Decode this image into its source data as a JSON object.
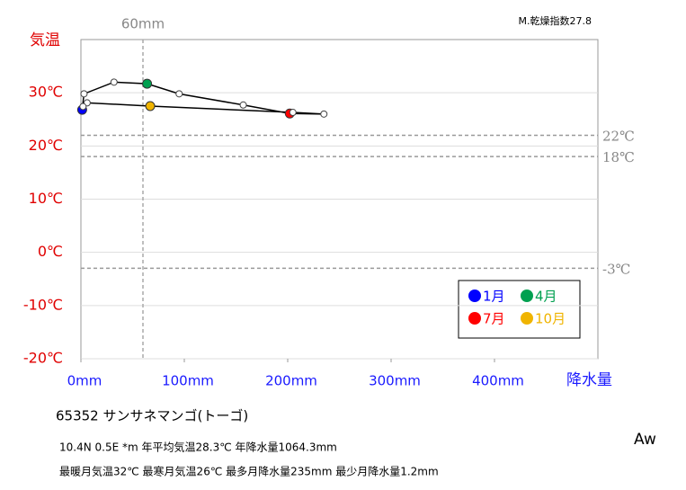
{
  "chart_data": {
    "type": "climograph",
    "station": "65352 サンサネマンゴ(トーゴ)",
    "index_label": "M.乾燥指数27.8",
    "y_label": "気温",
    "x_label": "降水量",
    "climate_class": "Aw",
    "info_lines": [
      "10.4N 0.5E *m 年平均気温28.3℃ 年降水量1064.3mm",
      "最暖月気温32℃ 最寒月気温26℃ 最多月降水量235mm 最少月降水量1.2mm"
    ],
    "xlim": [
      0,
      500
    ],
    "ylim": [
      -20,
      40
    ],
    "xticks": [
      {
        "value": 0,
        "label": "0mm"
      },
      {
        "value": 100,
        "label": "100mm"
      },
      {
        "value": 200,
        "label": "200mm"
      },
      {
        "value": 300,
        "label": "300mm"
      },
      {
        "value": 400,
        "label": "400mm"
      }
    ],
    "yticks": [
      {
        "value": -20,
        "label": "-20℃"
      },
      {
        "value": -10,
        "label": "-10℃"
      },
      {
        "value": 0,
        "label": "0℃"
      },
      {
        "value": 10,
        "label": "10℃"
      },
      {
        "value": 20,
        "label": "20℃"
      },
      {
        "value": 30,
        "label": "30℃"
      }
    ],
    "ref_lines": [
      {
        "value": 22,
        "label": "22℃"
      },
      {
        "value": 18,
        "label": "18℃"
      },
      {
        "value": -3,
        "label": "-3℃"
      }
    ],
    "ref_vline": {
      "value": 60,
      "label": "60mm"
    },
    "x": [
      1.2,
      3,
      32,
      64,
      95,
      157,
      202,
      235,
      205,
      67,
      6,
      2
    ],
    "values": [
      26.8,
      29.8,
      32,
      31.7,
      29.8,
      27.7,
      26.1,
      26,
      26.3,
      27.5,
      28.1,
      27.4
    ],
    "marker_colors": [
      "#0000ff",
      "#ffffff",
      "#ffffff",
      "#00a050",
      "#ffffff",
      "#ffffff",
      "#ff0000",
      "#ffffff",
      "#ffffff",
      "#f0b400",
      "#ffffff",
      "#ffffff"
    ],
    "legend": [
      {
        "name": "1月",
        "color": "#0000ff"
      },
      {
        "name": "4月",
        "color": "#00a050"
      },
      {
        "name": "7月",
        "color": "#ff0000"
      },
      {
        "name": "10月",
        "color": "#f0b400"
      }
    ]
  }
}
